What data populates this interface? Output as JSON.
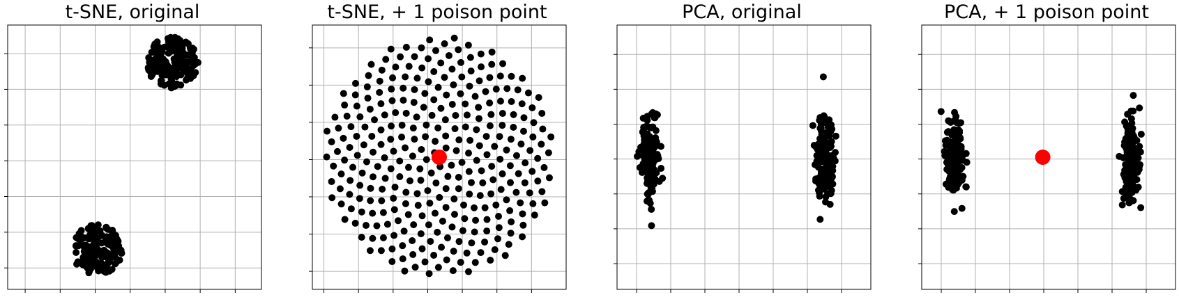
{
  "colors": {
    "points": "#000000",
    "poison": "#ff0000",
    "grid": "#b0b0b0",
    "frame": "#000000"
  },
  "chart_data": [
    {
      "type": "scatter",
      "title": "t-SNE, original",
      "grid": true,
      "xlim": [
        0,
        14.5
      ],
      "ylim": [
        0,
        7.4
      ],
      "x_ticks": [
        1,
        3,
        5,
        7,
        9,
        11,
        13
      ],
      "y_ticks": [
        0.6,
        1.6,
        2.6,
        3.6,
        4.6,
        5.6,
        6.6
      ],
      "series": [
        {
          "role": "points",
          "clusters": [
            {
              "cx": 5.1,
              "cy": 1.1,
              "rx": 1.5,
              "ry": 0.75,
              "n": 160
            },
            {
              "cx": 9.4,
              "cy": 6.35,
              "rx": 1.55,
              "ry": 0.75,
              "n": 160
            }
          ]
        }
      ]
    },
    {
      "type": "scatter",
      "title": "t-SNE, + 1 poison point",
      "grid": true,
      "xlim": [
        -1.1,
        1.1
      ],
      "ylim": [
        -1.1,
        1.1
      ],
      "x_ticks": [
        -1.0,
        -0.7,
        -0.4,
        -0.1,
        0.2,
        0.5,
        0.8
      ],
      "y_ticks": [
        -0.95,
        -0.64,
        -0.33,
        -0.02,
        0.29,
        0.6,
        0.91
      ],
      "series": [
        {
          "role": "points",
          "layout": "spiral",
          "n": 320,
          "cx": 0,
          "cy": 0,
          "r": 1.0
        },
        {
          "role": "poison",
          "points": [
            [
              0.0,
              0.0
            ]
          ]
        }
      ]
    },
    {
      "type": "scatter",
      "title": "PCA, original",
      "grid": true,
      "xlim": [
        -6.5,
        6.5
      ],
      "ylim": [
        -3.6,
        3.6
      ],
      "x_ticks": [
        -5.5,
        -3.75,
        -2.0,
        -0.25,
        1.5,
        3.25,
        5.0
      ],
      "y_ticks": [
        -2.9,
        -1.95,
        -1.0,
        -0.05,
        0.9,
        1.85,
        2.8
      ],
      "series": [
        {
          "role": "points",
          "clusters": [
            {
              "cx": -4.8,
              "cy": 0.0,
              "rx": 0.55,
              "ry": 1.05,
              "n": 150
            },
            {
              "cx": 4.2,
              "cy": 0.0,
              "rx": 0.55,
              "ry": 1.15,
              "n": 150
            }
          ]
        }
      ]
    },
    {
      "type": "scatter",
      "title": "PCA, + 1 poison point",
      "grid": true,
      "xlim": [
        -6.5,
        6.5
      ],
      "ylim": [
        -3.6,
        3.6
      ],
      "x_ticks": [
        -5.5,
        -3.75,
        -2.0,
        -0.25,
        1.5,
        3.25,
        5.0
      ],
      "y_ticks": [
        -2.9,
        -1.95,
        -1.0,
        -0.05,
        0.9,
        1.85,
        2.8
      ],
      "series": [
        {
          "role": "points",
          "clusters": [
            {
              "cx": -4.8,
              "cy": 0.0,
              "rx": 0.55,
              "ry": 1.05,
              "n": 150
            },
            {
              "cx": 4.2,
              "cy": 0.0,
              "rx": 0.55,
              "ry": 1.15,
              "n": 150
            }
          ]
        },
        {
          "role": "poison",
          "points": [
            [
              -0.3,
              0.0
            ]
          ]
        }
      ]
    }
  ]
}
